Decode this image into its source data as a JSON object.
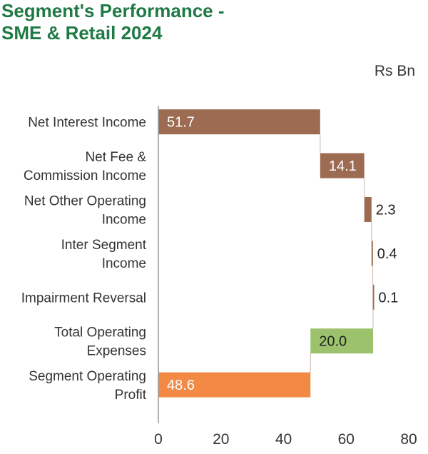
{
  "title": "Segment's Performance -\nSME & Retail 2024",
  "unit": "Rs Bn",
  "chart_data": {
    "type": "bar",
    "subtype": "waterfall",
    "orientation": "horizontal",
    "categories": [
      "Net Interest Income",
      "Net Fee &\nCommission Income",
      "Net Other Operating\nIncome",
      "Inter Segment\nIncome",
      "Impairment Reversal",
      "Total Operating\nExpenses",
      "Segment Operating\nProfit"
    ],
    "values": [
      51.7,
      14.1,
      2.3,
      0.4,
      0.1,
      -20.0,
      48.6
    ],
    "value_labels": [
      "51.7",
      "14.1",
      "2.3",
      "0.4",
      "0.1",
      "20.0",
      "48.6"
    ],
    "kinds": [
      "increase",
      "increase",
      "increase",
      "increase",
      "increase",
      "decrease",
      "total"
    ],
    "xlim": [
      0,
      80
    ],
    "xticks": [
      0,
      20,
      40,
      60,
      80
    ],
    "colors": {
      "increase": "#9c6b52",
      "decrease": "#9cc26d",
      "total": "#f28a45",
      "increase_small": "#9c6b52",
      "decrease_small": "#9cc26d"
    },
    "grid": false
  }
}
